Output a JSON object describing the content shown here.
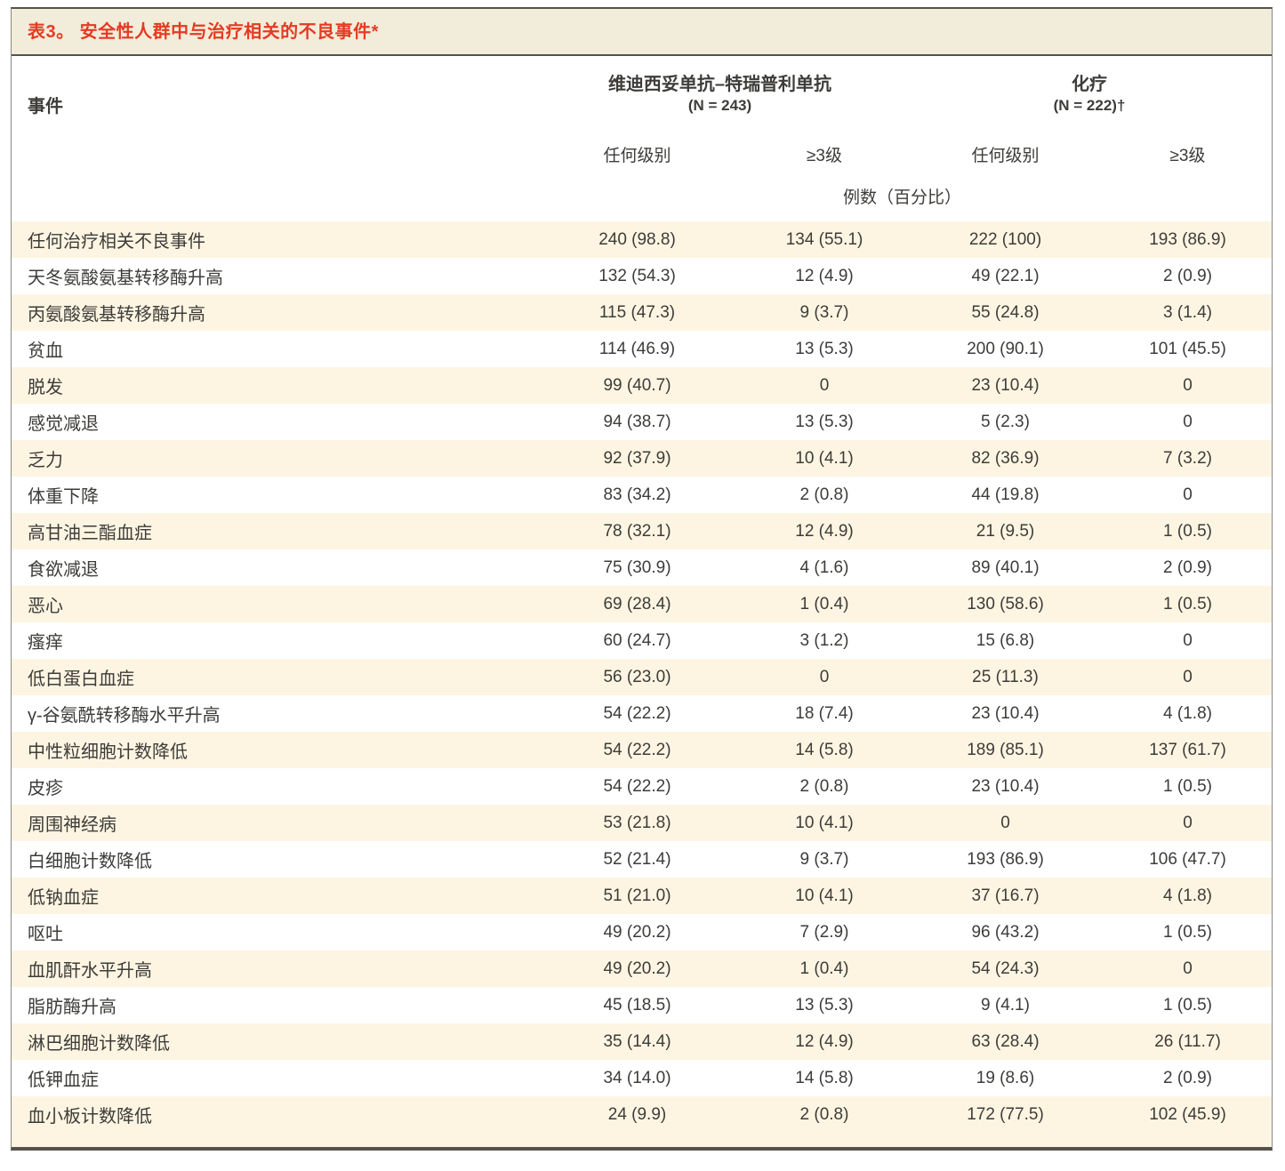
{
  "colors": {
    "accent_red": "#e53a23",
    "title_band": "#f2edda",
    "row_stripe": "#fdf5e2",
    "text": "#3d3c39",
    "rule_dark": "#55524c",
    "border_gray": "#8a8783"
  },
  "table": {
    "title": "表3。 安全性人群中与治疗相关的不良事件*",
    "event_header": "事件",
    "groups": [
      {
        "name": "维迪西妥单抗–特瑞普利单抗",
        "n": "(N = 243)"
      },
      {
        "name": "化疗",
        "n": "(N = 222)†"
      }
    ],
    "subheaders": [
      "任何级别",
      "≥3级",
      "任何级别",
      "≥3级"
    ],
    "units_label": "例数（百分比）",
    "rows": [
      {
        "event": "任何治疗相关不良事件",
        "values": [
          "240 (98.8)",
          "134 (55.1)",
          "222 (100)",
          "193 (86.9)"
        ]
      },
      {
        "event": "天冬氨酸氨基转移酶升高",
        "values": [
          "132 (54.3)",
          "12 (4.9)",
          "49 (22.1)",
          "2 (0.9)"
        ]
      },
      {
        "event": "丙氨酸氨基转移酶升高",
        "values": [
          "115 (47.3)",
          "9 (3.7)",
          "55 (24.8)",
          "3 (1.4)"
        ]
      },
      {
        "event": "贫血",
        "values": [
          "114 (46.9)",
          "13 (5.3)",
          "200 (90.1)",
          "101 (45.5)"
        ]
      },
      {
        "event": "脱发",
        "values": [
          "99 (40.7)",
          "0",
          "23 (10.4)",
          "0"
        ]
      },
      {
        "event": "感觉减退",
        "values": [
          "94 (38.7)",
          "13 (5.3)",
          "5 (2.3)",
          "0"
        ]
      },
      {
        "event": "乏力",
        "values": [
          "92 (37.9)",
          "10 (4.1)",
          "82 (36.9)",
          "7 (3.2)"
        ]
      },
      {
        "event": "体重下降",
        "values": [
          "83 (34.2)",
          "2 (0.8)",
          "44 (19.8)",
          "0"
        ]
      },
      {
        "event": "高甘油三酯血症",
        "values": [
          "78 (32.1)",
          "12 (4.9)",
          "21 (9.5)",
          "1 (0.5)"
        ]
      },
      {
        "event": "食欲减退",
        "values": [
          "75 (30.9)",
          "4 (1.6)",
          "89 (40.1)",
          "2 (0.9)"
        ]
      },
      {
        "event": "恶心",
        "values": [
          "69 (28.4)",
          "1 (0.4)",
          "130 (58.6)",
          "1 (0.5)"
        ]
      },
      {
        "event": "瘙痒",
        "values": [
          "60 (24.7)",
          "3 (1.2)",
          "15 (6.8)",
          "0"
        ]
      },
      {
        "event": "低白蛋白血症",
        "values": [
          "56 (23.0)",
          "0",
          "25 (11.3)",
          "0"
        ]
      },
      {
        "event": "γ-谷氨酰转移酶水平升高",
        "values": [
          "54 (22.2)",
          "18 (7.4)",
          "23 (10.4)",
          "4 (1.8)"
        ]
      },
      {
        "event": "中性粒细胞计数降低",
        "values": [
          "54 (22.2)",
          "14 (5.8)",
          "189 (85.1)",
          "137 (61.7)"
        ]
      },
      {
        "event": "皮疹",
        "values": [
          "54 (22.2)",
          "2 (0.8)",
          "23 (10.4)",
          "1 (0.5)"
        ]
      },
      {
        "event": "周围神经病",
        "values": [
          "53 (21.8)",
          "10 (4.1)",
          "0",
          "0"
        ]
      },
      {
        "event": "白细胞计数降低",
        "values": [
          "52 (21.4)",
          "9 (3.7)",
          "193 (86.9)",
          "106 (47.7)"
        ]
      },
      {
        "event": "低钠血症",
        "values": [
          "51 (21.0)",
          "10 (4.1)",
          "37 (16.7)",
          "4 (1.8)"
        ]
      },
      {
        "event": "呕吐",
        "values": [
          "49 (20.2)",
          "7 (2.9)",
          "96 (43.2)",
          "1 (0.5)"
        ]
      },
      {
        "event": "血肌酐水平升高",
        "values": [
          "49 (20.2)",
          "1 (0.4)",
          "54 (24.3)",
          "0"
        ]
      },
      {
        "event": "脂肪酶升高",
        "values": [
          "45 (18.5)",
          "13 (5.3)",
          "9 (4.1)",
          "1 (0.5)"
        ]
      },
      {
        "event": "淋巴细胞计数降低",
        "values": [
          "35 (14.4)",
          "12 (4.9)",
          "63 (28.4)",
          "26 (11.7)"
        ]
      },
      {
        "event": "低钾血症",
        "values": [
          "34 (14.0)",
          "14 (5.8)",
          "19 (8.6)",
          "2 (0.9)"
        ]
      },
      {
        "event": "血小板计数降低",
        "values": [
          "24 (9.9)",
          "2 (0.8)",
          "172 (77.5)",
          "102 (45.9)"
        ]
      }
    ]
  }
}
